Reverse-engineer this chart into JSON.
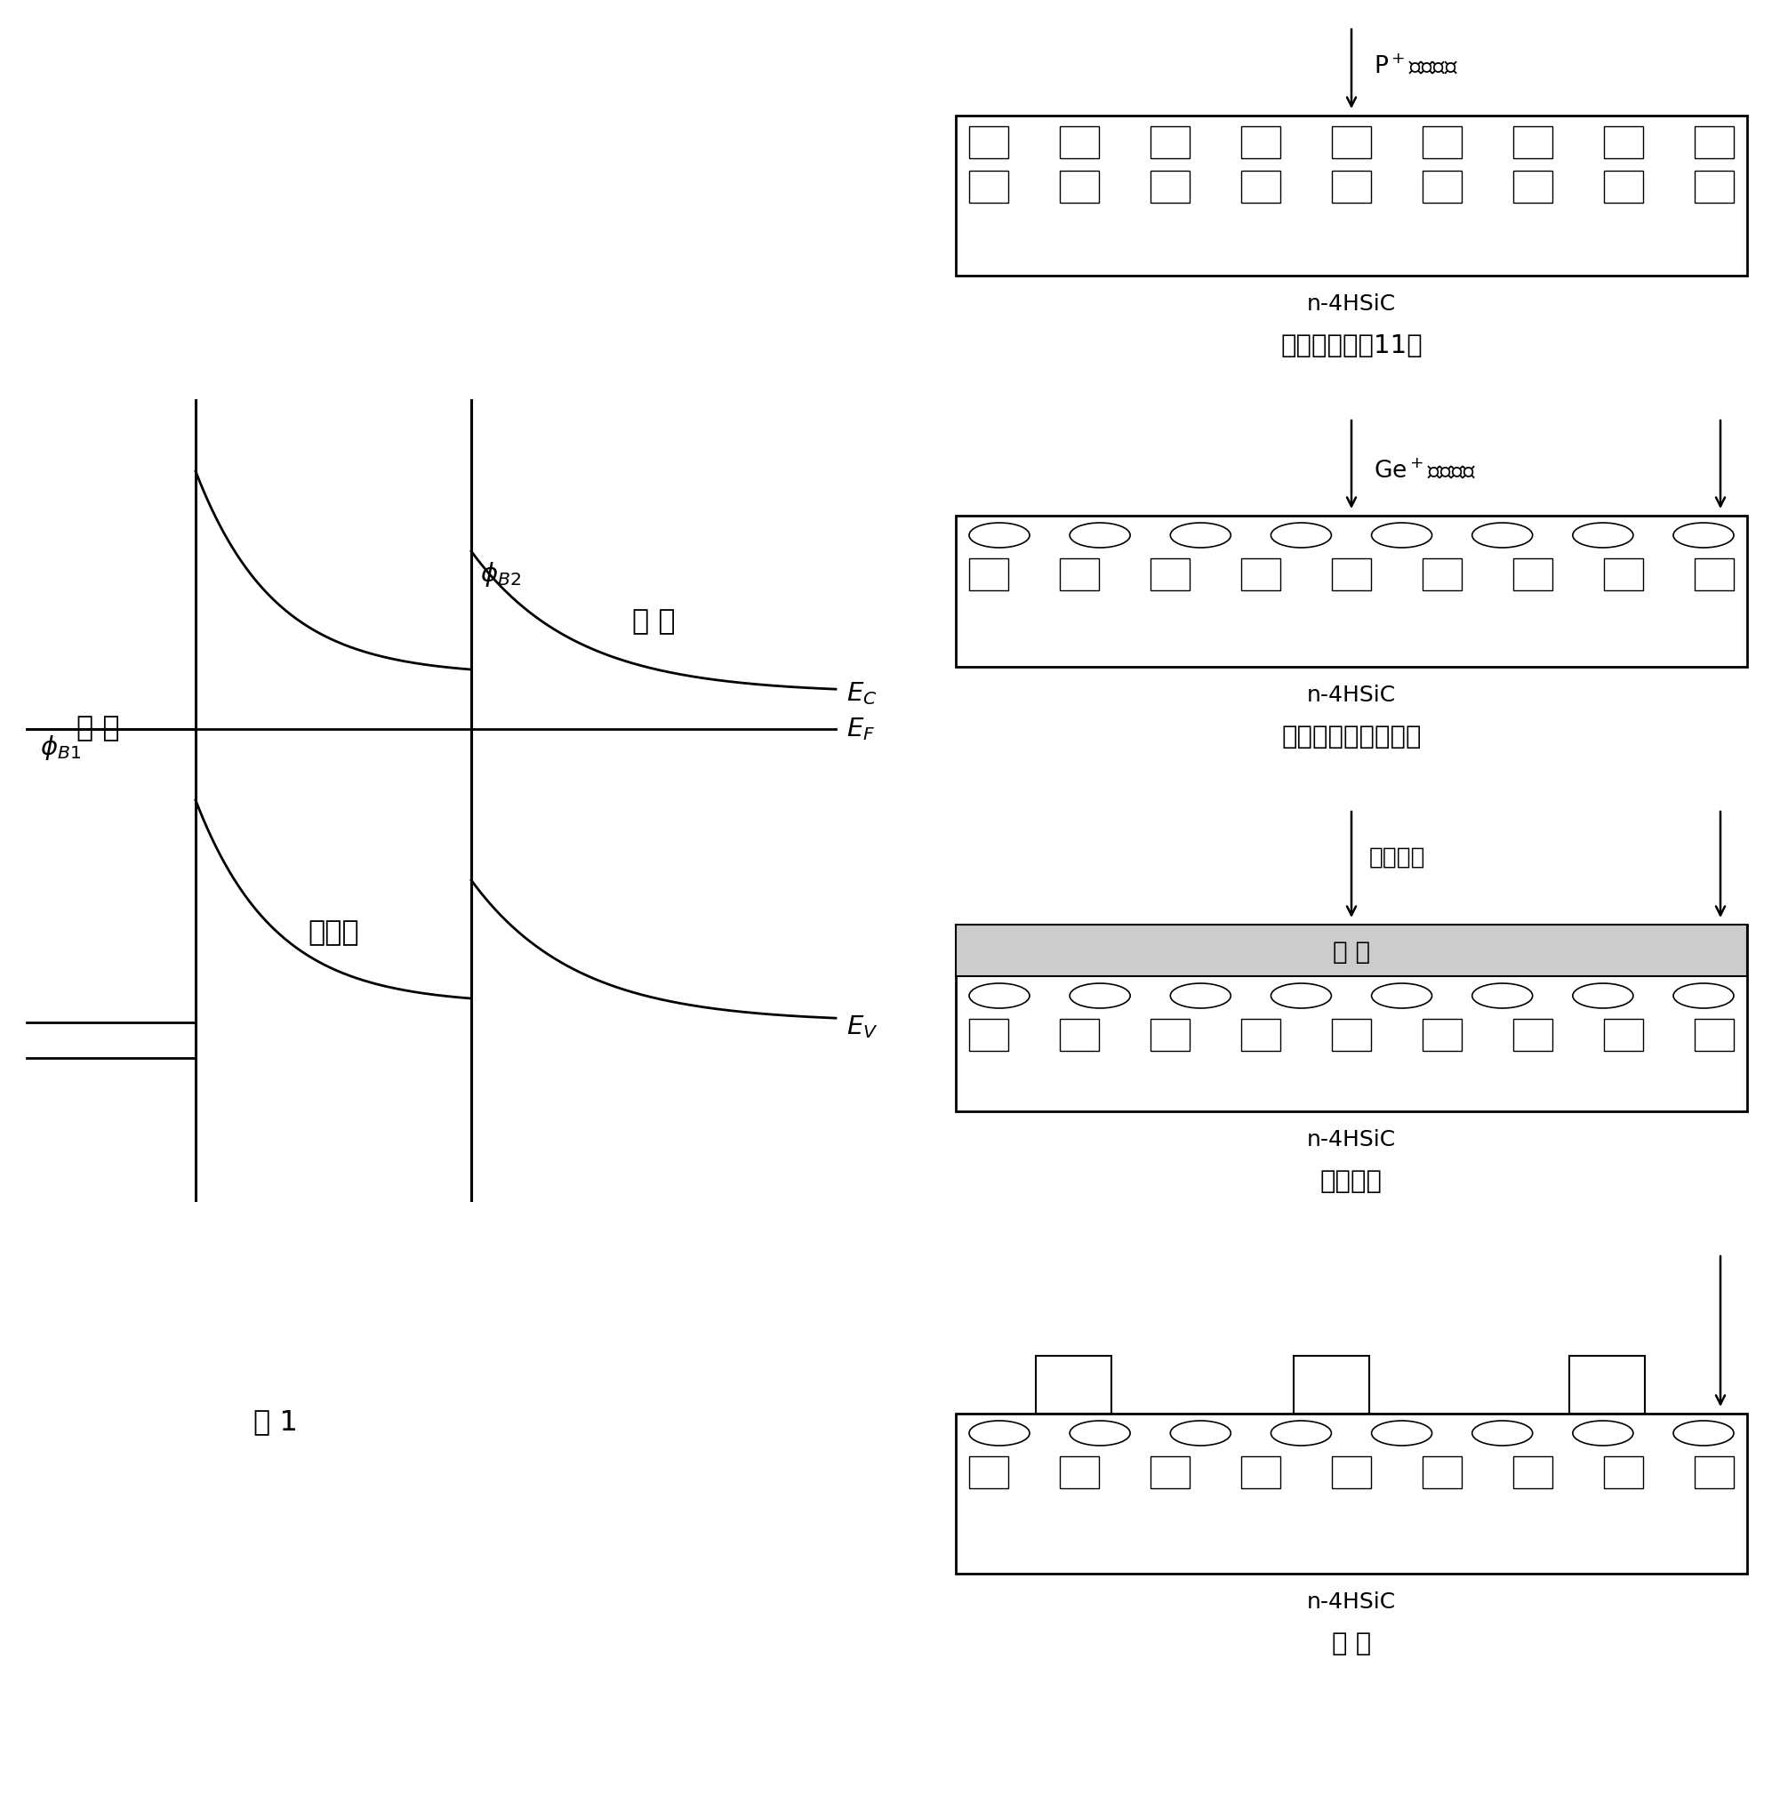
{
  "bg_color": "#ffffff",
  "fig_width": 20.02,
  "fig_height": 20.28,
  "left_panel": {
    "label_metal": "金 属",
    "label_interlayer": "中间层",
    "label_substrate": "衬 底",
    "label_phi_B1": "$\\phi_{B1}$",
    "label_phi_B2": "$\\phi_{B2}$",
    "label_Ec": "$E_C$",
    "label_Ef": "$E_F$",
    "label_Ev": "$E_V$",
    "label_fig": "图 1"
  },
  "right_panel": {
    "step1_arrow_label": "P$^+$离子注入",
    "step1_label1": "n-4HSiC",
    "step1_label2": "离子注入形成11阱",
    "step2_arrow_label": "Ge$^+$离子注入",
    "step2_label1": "n-4HSiC",
    "step2_label2": "离子注入形成过渡层",
    "step3_arrow_label": "金属淡积",
    "step3_metal_label": "金 属",
    "step3_label1": "n-4HSiC",
    "step3_label2": "淡积金属",
    "step4_label1": "n-4HSiC",
    "step4_label2": "剑 离"
  }
}
